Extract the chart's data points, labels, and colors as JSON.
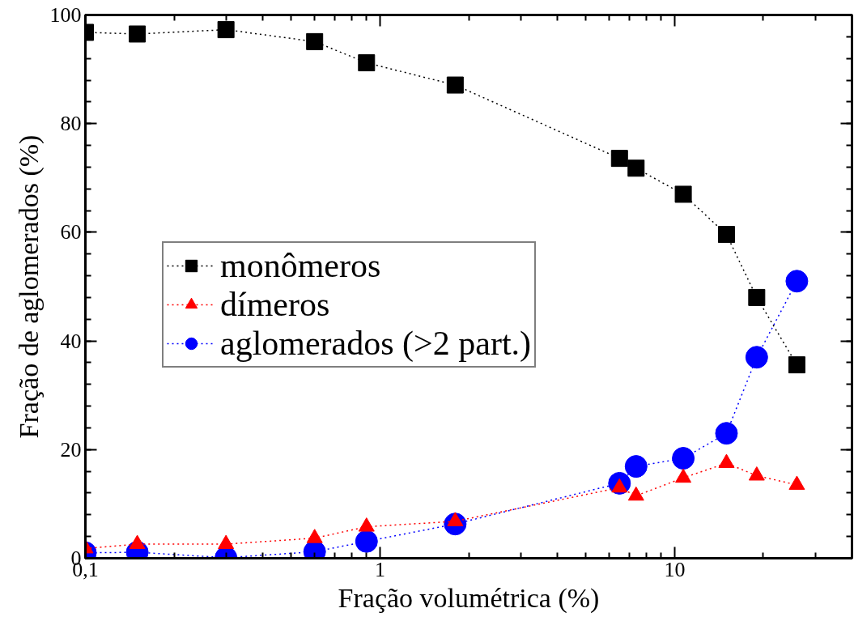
{
  "chart_data": {
    "type": "line",
    "xlabel": "Fração volumétrica (%)",
    "ylabel": "Fração de aglomerados (%)",
    "x": [
      0.1,
      0.15,
      0.3,
      0.6,
      0.9,
      1.8,
      6.5,
      7.4,
      10.7,
      15,
      19,
      26
    ],
    "series": [
      {
        "name": "monômeros",
        "color": "#000000",
        "marker": "square",
        "values": [
          96.8,
          96.5,
          97.3,
          95.1,
          91.2,
          87.1,
          73.6,
          71.8,
          67,
          59.6,
          48,
          35.6
        ]
      },
      {
        "name": "dímeros",
        "color": "#ff0000",
        "marker": "triangle",
        "values": [
          1.8,
          2.6,
          2.6,
          3.7,
          5.8,
          6.8,
          13,
          11.5,
          14.8,
          17.5,
          15.2,
          13.5
        ]
      },
      {
        "name": "aglomerados (>2 part.)",
        "color": "#0000ff",
        "marker": "circle",
        "values": [
          1.0,
          1.1,
          0.1,
          1.2,
          3.1,
          6.3,
          13.8,
          16.9,
          18.4,
          23,
          37,
          51
        ]
      }
    ],
    "log": "x",
    "xlim": [
      0.1,
      40
    ],
    "xticks": [
      {
        "value": 0.1,
        "label": "0,1"
      },
      1,
      10
    ],
    "ylim": [
      0,
      100
    ],
    "yticks": [
      0,
      20,
      40,
      60,
      80,
      100
    ],
    "grid": false,
    "legend": "left",
    "line_style": "dotted"
  }
}
